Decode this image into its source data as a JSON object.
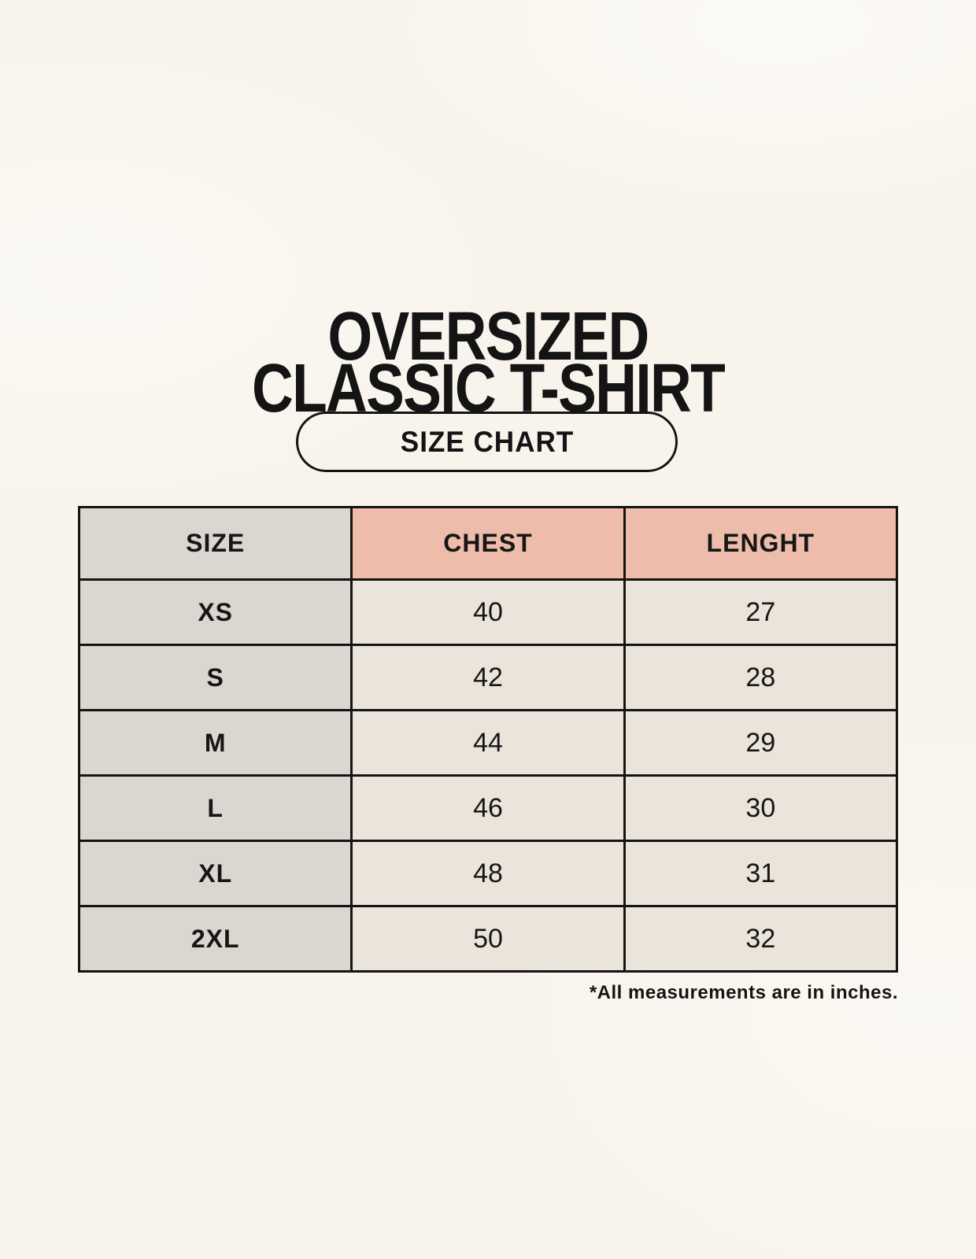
{
  "title": {
    "line1": "OVERSIZED",
    "line2": "CLASSIC T-SHIRT"
  },
  "badge": {
    "label": "SIZE CHART"
  },
  "table": {
    "columns": [
      "SIZE",
      "CHEST",
      "LENGHT"
    ],
    "rows": [
      {
        "size": "XS",
        "chest": "40",
        "length": "27"
      },
      {
        "size": "S",
        "chest": "42",
        "length": "28"
      },
      {
        "size": "M",
        "chest": "44",
        "length": "29"
      },
      {
        "size": "L",
        "chest": "46",
        "length": "30"
      },
      {
        "size": "XL",
        "chest": "48",
        "length": "31"
      },
      {
        "size": "2XL",
        "chest": "50",
        "length": "32"
      }
    ]
  },
  "footnote": "*All measurements are in inches.",
  "colors": {
    "page_background": "#f8f4ec",
    "header_measure_bg": "#eebcaa",
    "size_column_bg": "#dcd6d0",
    "value_cell_bg": "#eae4da",
    "border": "#141414",
    "text": "#141414"
  },
  "chart_data": {
    "type": "table",
    "title": "OVERSIZED CLASSIC T-SHIRT — SIZE CHART",
    "columns": [
      "SIZE",
      "CHEST",
      "LENGHT"
    ],
    "rows": [
      [
        "XS",
        40,
        27
      ],
      [
        "S",
        42,
        28
      ],
      [
        "M",
        44,
        29
      ],
      [
        "L",
        46,
        30
      ],
      [
        "XL",
        48,
        31
      ],
      [
        "2XL",
        50,
        32
      ]
    ],
    "note": "*All measurements are in inches.",
    "units": "inches"
  }
}
